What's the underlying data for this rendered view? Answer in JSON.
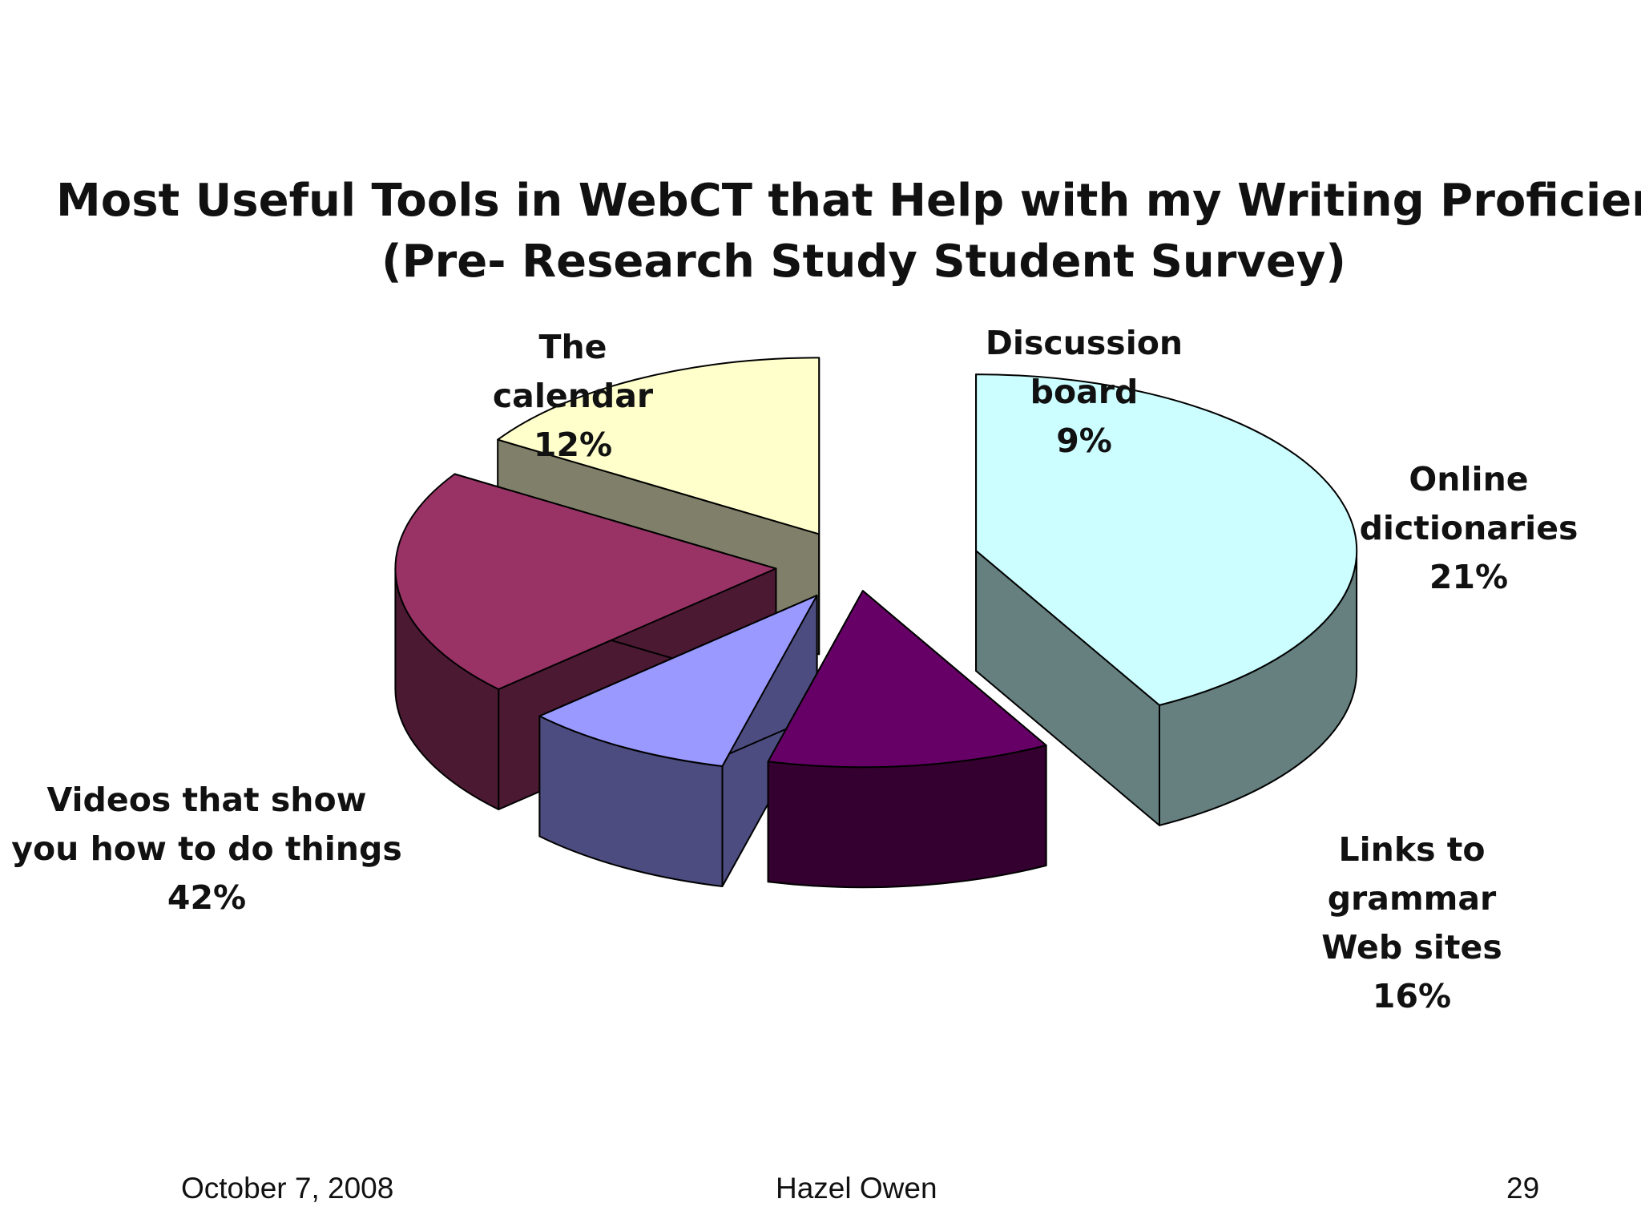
{
  "chart_data": {
    "type": "pie",
    "title": "Most Useful Tools in WebCT that Help with my Writing Proficiency",
    "subtitle": "(Pre- Research Study Student Survey)",
    "categories": [
      "Videos that show you how to do things",
      "The calendar",
      "Discussion board",
      "Online dictionaries",
      "Links to grammar Web sites"
    ],
    "labels": [
      "Videos that show\nyou how to do things",
      "The\ncalendar",
      "Discussion\nboard",
      "Online\ndictionaries",
      "Links to grammar\nWeb sites"
    ],
    "values": [
      42,
      12,
      9,
      21,
      16
    ],
    "value_labels": [
      "42%",
      "12%",
      "9%",
      "21%",
      "16%"
    ],
    "style": "3d-exploded",
    "legend": "none",
    "colors": {
      "top": [
        "#ccfeff",
        "#660066",
        "#9999ff",
        "#993366",
        "#ffffcc"
      ],
      "side": [
        "#668080",
        "#33002f",
        "#4c4c80",
        "#4c1933",
        "#80806a"
      ]
    }
  },
  "footer": {
    "date": "October 7, 2008",
    "author": "Hazel Owen",
    "page": "29"
  }
}
